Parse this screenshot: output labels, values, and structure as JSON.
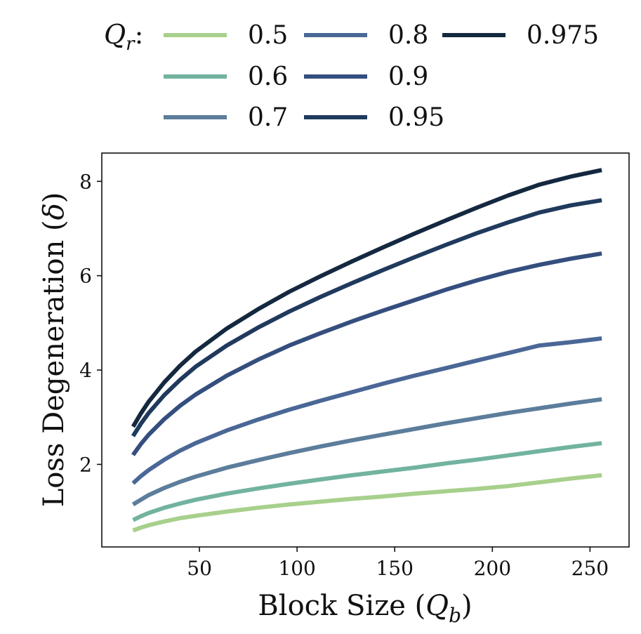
{
  "chart_data": {
    "type": "line",
    "xlabel_main": "Block Size (",
    "xlabel_var": "Q",
    "xlabel_sub": "b",
    "xlabel_close": ")",
    "ylabel_main": "Loss Degeneration (",
    "ylabel_var": "δ",
    "ylabel_close": ")",
    "xlim": [
      0,
      270
    ],
    "ylim": [
      0.25,
      8.6
    ],
    "xticks": [
      50,
      100,
      150,
      200,
      250
    ],
    "yticks": [
      2,
      4,
      6,
      8
    ],
    "grid": false,
    "legend": {
      "position": "top",
      "title_var": "Q",
      "title_sub": "r",
      "title_suffix": ":"
    },
    "x": [
      16,
      20,
      24,
      32,
      40,
      48,
      64,
      80,
      96,
      112,
      128,
      144,
      160,
      176,
      192,
      208,
      224,
      240,
      256
    ],
    "series": [
      {
        "name": "0.5",
        "color": "#a8d08d",
        "values": [
          0.6,
          0.66,
          0.71,
          0.79,
          0.86,
          0.91,
          1.0,
          1.08,
          1.15,
          1.21,
          1.27,
          1.32,
          1.38,
          1.43,
          1.48,
          1.54,
          1.62,
          1.7,
          1.77
        ]
      },
      {
        "name": "0.6",
        "color": "#72b3a0",
        "values": [
          0.82,
          0.9,
          0.97,
          1.08,
          1.17,
          1.25,
          1.38,
          1.49,
          1.59,
          1.68,
          1.77,
          1.85,
          1.93,
          2.02,
          2.1,
          2.19,
          2.28,
          2.37,
          2.45
        ]
      },
      {
        "name": "0.7",
        "color": "#5c7d9b",
        "values": [
          1.15,
          1.25,
          1.35,
          1.5,
          1.63,
          1.74,
          1.93,
          2.09,
          2.24,
          2.38,
          2.51,
          2.63,
          2.75,
          2.87,
          2.98,
          3.09,
          3.19,
          3.29,
          3.38
        ]
      },
      {
        "name": "0.8",
        "color": "#4a6796",
        "values": [
          1.6,
          1.75,
          1.88,
          2.1,
          2.29,
          2.45,
          2.72,
          2.95,
          3.16,
          3.35,
          3.53,
          3.71,
          3.88,
          4.04,
          4.2,
          4.36,
          4.52,
          4.59,
          4.67
        ]
      },
      {
        "name": "0.9",
        "color": "#344e7e",
        "values": [
          2.2,
          2.43,
          2.63,
          2.96,
          3.24,
          3.48,
          3.88,
          4.22,
          4.52,
          4.78,
          5.03,
          5.26,
          5.48,
          5.7,
          5.9,
          6.08,
          6.23,
          6.36,
          6.47
        ]
      },
      {
        "name": "0.95",
        "color": "#203a5d",
        "values": [
          2.6,
          2.86,
          3.09,
          3.47,
          3.79,
          4.07,
          4.52,
          4.9,
          5.24,
          5.55,
          5.84,
          6.12,
          6.39,
          6.65,
          6.9,
          7.13,
          7.34,
          7.49,
          7.6
        ]
      },
      {
        "name": "0.975",
        "color": "#14283f",
        "values": [
          2.8,
          3.08,
          3.33,
          3.74,
          4.09,
          4.39,
          4.88,
          5.29,
          5.66,
          5.99,
          6.3,
          6.6,
          6.89,
          7.17,
          7.44,
          7.7,
          7.93,
          8.1,
          8.24
        ]
      }
    ]
  }
}
